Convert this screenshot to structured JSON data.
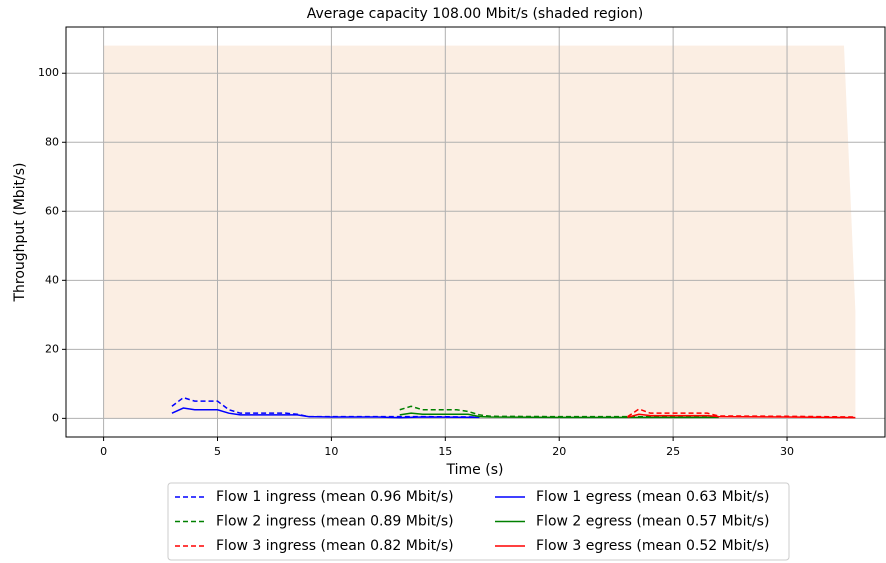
{
  "chart_data": {
    "type": "line",
    "title": "Average capacity 108.00 Mbit/s (shaded region)",
    "xlabel": "Time (s)",
    "ylabel": "Throughput (Mbit/s)",
    "xlim": [
      -1.65,
      34.3
    ],
    "ylim": [
      -5.4,
      113.4
    ],
    "xticks": [
      0,
      5,
      10,
      15,
      20,
      25,
      30
    ],
    "yticks": [
      0,
      20,
      40,
      60,
      80,
      100
    ],
    "grid": true,
    "legend": "lower center",
    "capacity": {
      "color": "#fbeee3",
      "x": [
        0,
        32.5,
        33,
        33
      ],
      "values": [
        108,
        108,
        31,
        0
      ]
    },
    "series": [
      {
        "name": "Flow 1 ingress (mean 0.96 Mbit/s)",
        "color": "#0000ff",
        "style": "dashed",
        "x": [
          3,
          3.5,
          4,
          5,
          5.5,
          6,
          8,
          8.5,
          9,
          10,
          12,
          14,
          16.5
        ],
        "values": [
          3.5,
          6,
          5,
          5,
          2.5,
          1.5,
          1.5,
          1.2,
          0.5,
          0.5,
          0.5,
          0.5,
          0.4
        ]
      },
      {
        "name": "Flow 2 ingress (mean 0.89 Mbit/s)",
        "color": "#008000",
        "style": "dashed",
        "x": [
          13,
          13.5,
          14,
          15.5,
          16,
          16.5,
          17,
          20,
          23,
          27
        ],
        "values": [
          2.5,
          3.5,
          2.5,
          2.5,
          2,
          1,
          0.6,
          0.5,
          0.5,
          0.4
        ]
      },
      {
        "name": "Flow 3 ingress (mean 0.82 Mbit/s)",
        "color": "#ff0000",
        "style": "dashed",
        "x": [
          23,
          23.5,
          24,
          26.5,
          27,
          30,
          33
        ],
        "values": [
          0.5,
          2.7,
          1.5,
          1.5,
          0.7,
          0.6,
          0.4
        ]
      },
      {
        "name": "Flow 1 egress (mean 0.63 Mbit/s)",
        "color": "#0000ff",
        "style": "solid",
        "x": [
          3,
          3.5,
          4,
          5,
          5.5,
          6,
          8.5,
          9,
          10,
          12,
          13,
          14,
          16.5
        ],
        "values": [
          1.5,
          3,
          2.5,
          2.5,
          1.5,
          1,
          1,
          0.5,
          0.4,
          0.4,
          0.2,
          0.4,
          0.3
        ]
      },
      {
        "name": "Flow 2 egress (mean 0.57 Mbit/s)",
        "color": "#008000",
        "style": "solid",
        "x": [
          13,
          13.5,
          14,
          16,
          16.5,
          17,
          20,
          23,
          27
        ],
        "values": [
          1,
          1.5,
          1.2,
          1.2,
          0.5,
          0.4,
          0.3,
          0.3,
          0.3
        ]
      },
      {
        "name": "Flow 3 egress (mean 0.52 Mbit/s)",
        "color": "#ff0000",
        "style": "solid",
        "x": [
          23,
          23.5,
          24,
          26.5,
          27,
          30,
          33
        ],
        "values": [
          0.3,
          1.2,
          0.8,
          0.8,
          0.5,
          0.4,
          0.2
        ]
      }
    ]
  }
}
